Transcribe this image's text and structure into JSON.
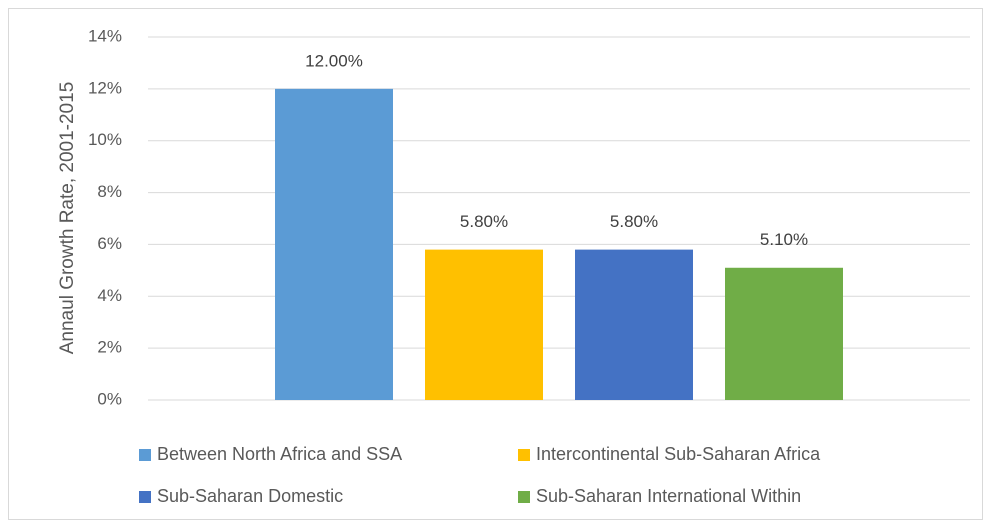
{
  "chart_data": {
    "type": "bar",
    "y_label": "Annaul Growth Rate, 2001-2015",
    "categories": [
      null
    ],
    "series": [
      {
        "name": "Between North Africa and SSA",
        "color": "#5b9bd5",
        "values": [
          12
        ],
        "value_labels": [
          "12.00%"
        ]
      },
      {
        "name": "Intercontinental Sub-Saharan Africa",
        "color": "#ffc000",
        "values": [
          5.8
        ],
        "value_labels": [
          "5.80%"
        ]
      },
      {
        "name": "Sub-Saharan Domestic",
        "color": "#4472c4",
        "values": [
          5.8
        ],
        "value_labels": [
          "5.80%"
        ]
      },
      {
        "name": "Sub-Saharan International Within",
        "color": "#70ad47",
        "values": [
          5.1
        ],
        "value_labels": [
          "5.10%"
        ]
      }
    ],
    "ylim": [
      0,
      14
    ],
    "yticks": [
      {
        "value": 0,
        "label": "0%"
      },
      {
        "value": 2,
        "label": "2%"
      },
      {
        "value": 4,
        "label": "4%"
      },
      {
        "value": 6,
        "label": "6%"
      },
      {
        "value": 8,
        "label": "8%"
      },
      {
        "value": 10,
        "label": "10%"
      },
      {
        "value": 12,
        "label": "12%"
      },
      {
        "value": 14,
        "label": "14%"
      }
    ],
    "grid": true,
    "legend": "bottom"
  }
}
